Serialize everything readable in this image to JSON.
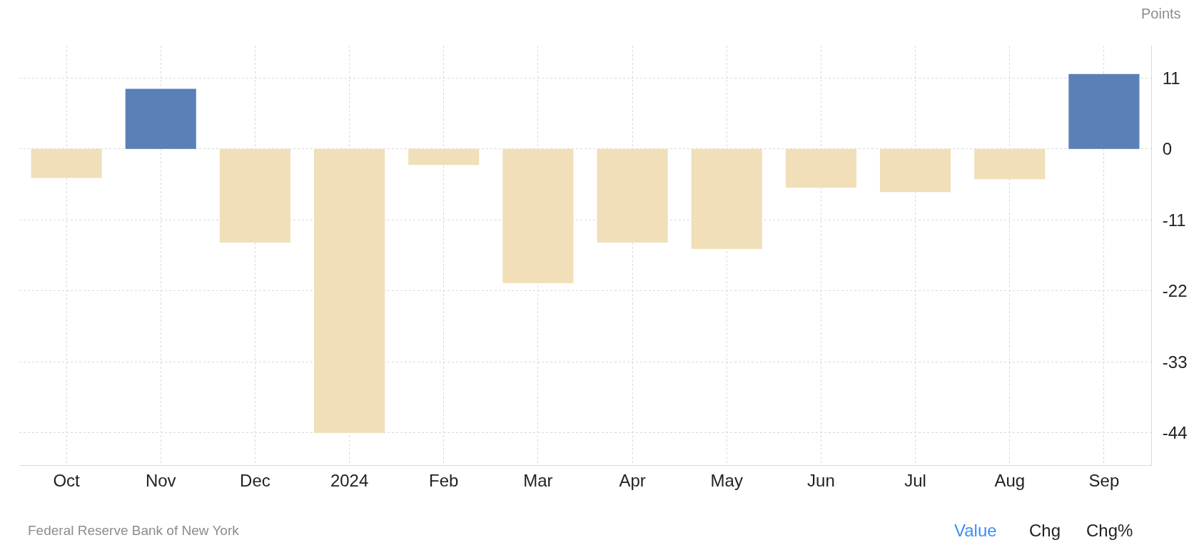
{
  "chart_data": {
    "type": "bar",
    "ylabel": "Points",
    "categories": [
      "Oct",
      "Nov",
      "Dec",
      "2024",
      "Feb",
      "Mar",
      "Apr",
      "May",
      "Jun",
      "Jul",
      "Aug",
      "Sep"
    ],
    "values": [
      -4.5,
      9.3,
      -14.5,
      -44,
      -2.5,
      -20.8,
      -14.5,
      -15.5,
      -6,
      -6.7,
      -4.7,
      11.6
    ],
    "colors": [
      "#f0dfb8",
      "#5a80b8",
      "#f0dfb8",
      "#f0dfb8",
      "#f0dfb8",
      "#f0dfb8",
      "#f0dfb8",
      "#f0dfb8",
      "#f0dfb8",
      "#f0dfb8",
      "#f0dfb8",
      "#5a80b8"
    ],
    "ylim": [
      -49,
      16
    ],
    "yticks": [
      -44,
      -33,
      -22,
      -11,
      0,
      11
    ],
    "grid": true,
    "line_style": "dotted",
    "annotations": [
      "Federal Reserve Bank of New York",
      "Value",
      "Chg",
      "Chg%"
    ]
  }
}
